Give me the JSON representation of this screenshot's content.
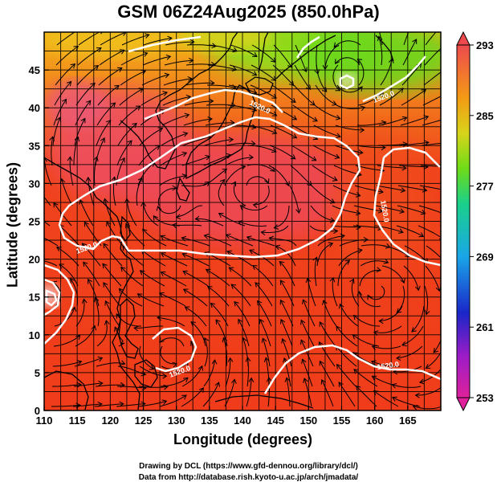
{
  "title": "GSM 06Z24Aug2025 (850.0hPa)",
  "xlabel": "Longitude (degrees)",
  "ylabel": "Latitude  (degrees)",
  "credit_line1": "Drawing by DCL (https://www.gfd-dennou.org/library/dcl/)",
  "credit_line2": "Data from http://database.rish.kyoto-u.ac.jp/arch/jmadata/",
  "chart_data": {
    "type": "heatmap",
    "x_ticks": [
      110,
      115,
      120,
      125,
      130,
      135,
      140,
      145,
      150,
      155,
      160,
      165
    ],
    "y_ticks": [
      0,
      5,
      10,
      15,
      20,
      25,
      30,
      35,
      40,
      45
    ],
    "xlim": [
      110,
      170
    ],
    "ylim": [
      0,
      50
    ],
    "colorbar_ticks": [
      253,
      261,
      269,
      277,
      285,
      293
    ],
    "colorbar_range": [
      253,
      293
    ],
    "contour_value": 1520,
    "contour_labels": [
      "1520.0",
      "1520.0",
      "1520.0",
      "1520.0",
      "1520.0",
      "1520.0"
    ],
    "fields": [
      "temperature (K)",
      "geopotential height contour",
      "wind streamlines"
    ],
    "colors": {
      "warm": "#f23a1c",
      "very_warm": "#ee4d56",
      "mid": "#f6a312",
      "cool": "#7bdc1f",
      "contour": "#ffffff",
      "coast": "#000000"
    }
  }
}
